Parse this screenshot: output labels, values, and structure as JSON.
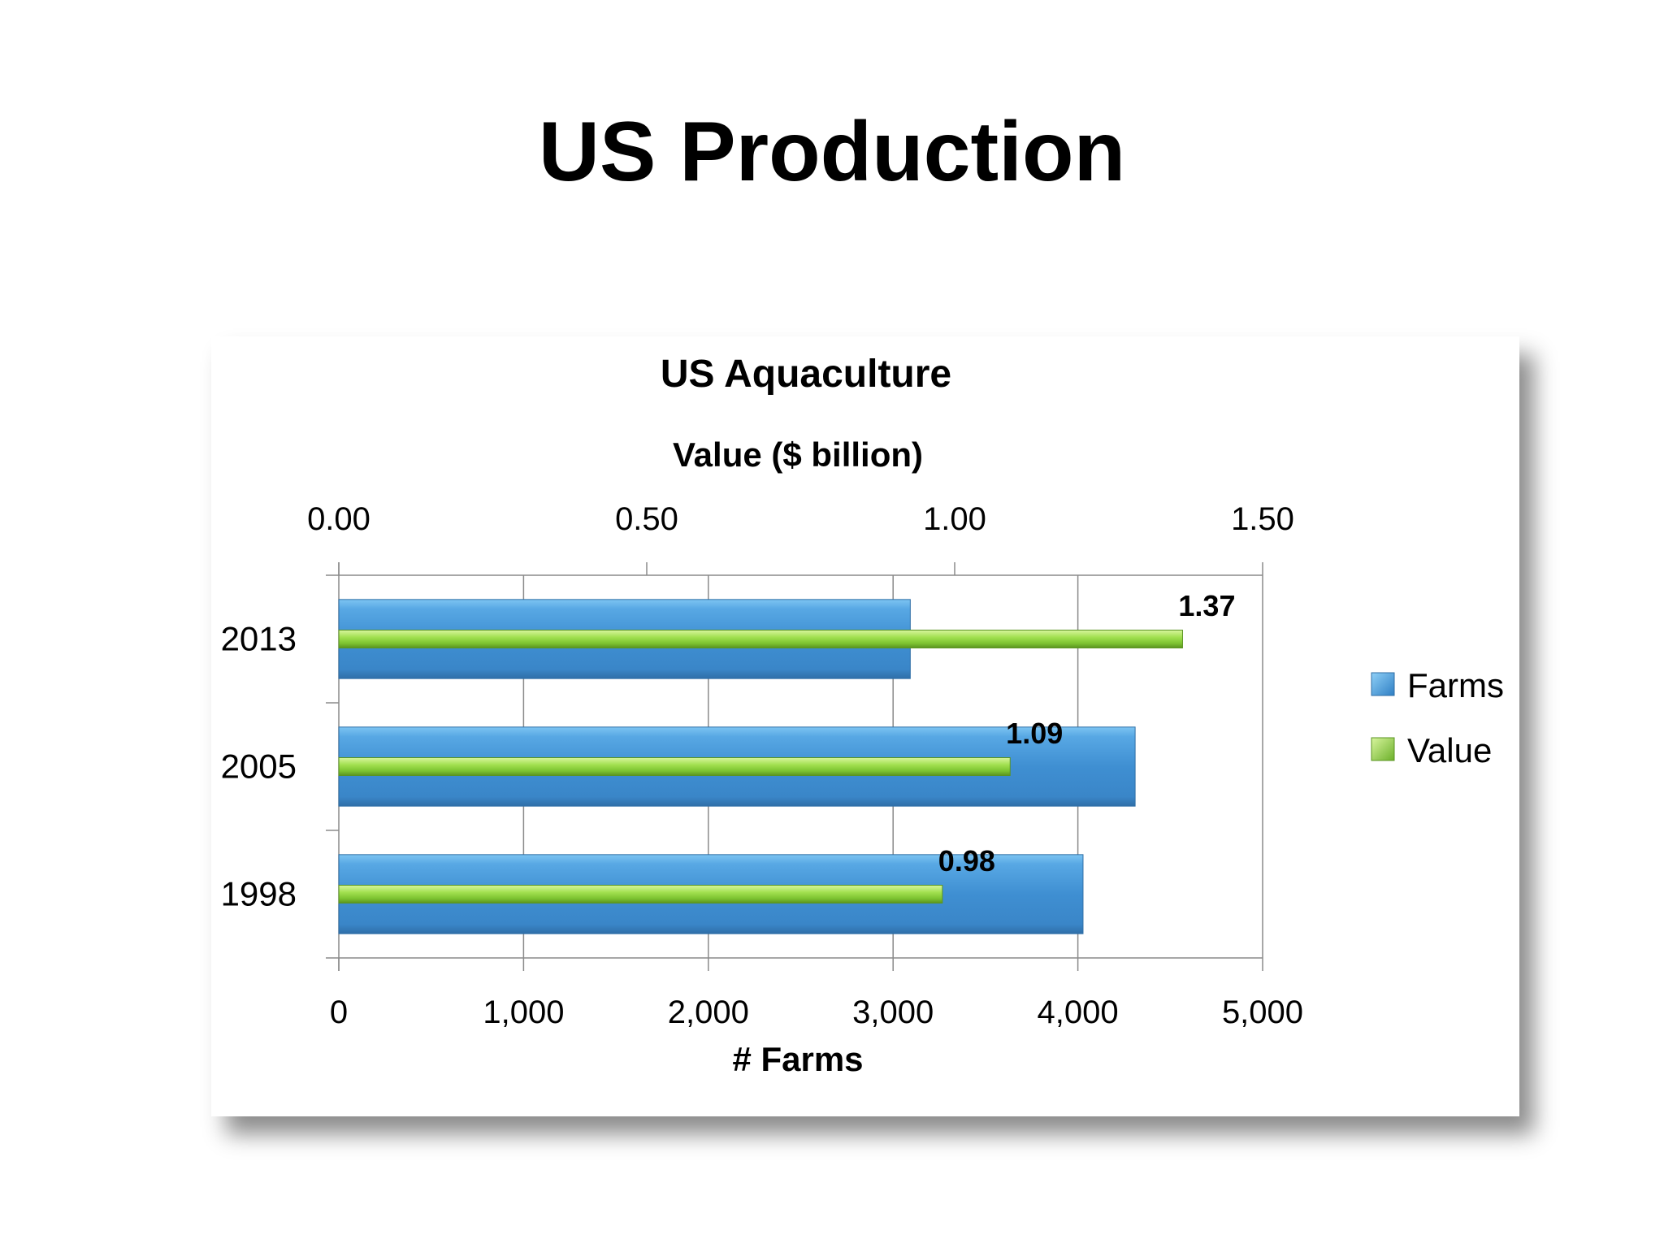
{
  "slide": {
    "title": "US Production"
  },
  "chart_data": {
    "type": "bar",
    "orientation": "horizontal",
    "title": "US Aquaculture",
    "categories": [
      "2013",
      "2005",
      "1998"
    ],
    "series": [
      {
        "name": "Farms",
        "axis": "bottom",
        "values": [
          3093,
          4310,
          4028
        ],
        "color": "#3f8fd2"
      },
      {
        "name": "Value",
        "axis": "top",
        "values": [
          1.37,
          1.09,
          0.98
        ],
        "data_labels": [
          "1.37",
          "1.09",
          "0.98"
        ],
        "color": "#8cd43c"
      }
    ],
    "bottom_axis": {
      "label": "# Farms",
      "range": [
        0,
        5000
      ],
      "ticks": [
        0,
        1000,
        2000,
        3000,
        4000,
        5000
      ],
      "tick_labels": [
        "0",
        "1,000",
        "2,000",
        "3,000",
        "4,000",
        "5,000"
      ]
    },
    "top_axis": {
      "label": "Value ($ billion)",
      "range": [
        0,
        1.5
      ],
      "ticks": [
        0,
        0.5,
        1.0,
        1.5
      ],
      "tick_labels": [
        "0.00",
        "0.50",
        "1.00",
        "1.50"
      ]
    },
    "grid": true,
    "legend": {
      "position": "right"
    }
  }
}
